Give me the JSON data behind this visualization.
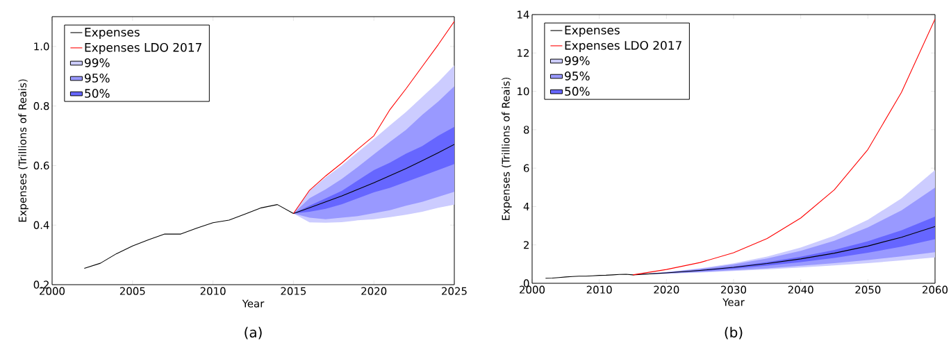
{
  "chart_data": [
    {
      "type": "line",
      "xlabel": "Year",
      "ylabel": "Expenses (Trillions of Reais)",
      "annotations": [
        "(a)"
      ],
      "legend": "top left",
      "xlim": [
        2000,
        2025
      ],
      "xticks": [
        2000,
        2005,
        2010,
        2015,
        2020,
        2025
      ],
      "ylim": [
        0.2,
        1.1
      ],
      "yticks": [
        0.2,
        0.4,
        0.6,
        0.8,
        {
          "value": 1,
          "label": "1.0"
        }
      ],
      "series": [
        {
          "name": "Expenses",
          "color": "#000000",
          "x": [
            2002,
            2003,
            2004,
            2005,
            2006,
            2007,
            2008,
            2009,
            2010,
            2011,
            2012,
            2013,
            2014,
            2015,
            2016,
            2017,
            2018,
            2019,
            2020,
            2021,
            2022,
            2023,
            2024,
            2025
          ],
          "values": [
            0.255,
            0.272,
            0.304,
            0.33,
            0.351,
            0.37,
            0.37,
            0.39,
            0.408,
            0.417,
            0.437,
            0.458,
            0.469,
            0.439,
            0.458,
            0.478,
            0.498,
            0.52,
            0.542,
            0.566,
            0.59,
            0.616,
            0.643,
            0.671
          ]
        },
        {
          "name": "Expenses LDO 2017",
          "color": "#ff0000",
          "x": [
            2015,
            2016,
            2017,
            2018,
            2019,
            2020,
            2021,
            2022,
            2023,
            2024,
            2025
          ],
          "values": [
            0.439,
            0.517,
            0.565,
            0.608,
            0.655,
            0.7,
            0.788,
            0.858,
            0.932,
            1.006,
            1.084
          ]
        },
        {
          "name": "99%",
          "type": "line",
          "color": "#ccccff",
          "x": [
            2015,
            2016,
            2017,
            2018,
            2019,
            2020,
            2021,
            2022,
            2023,
            2024,
            2025
          ],
          "values": [
            null,
            null,
            null,
            null,
            null,
            null,
            null,
            null,
            null,
            null,
            null
          ],
          "lower": [
            0.439,
            0.409,
            0.408,
            0.41,
            0.416,
            0.42,
            0.427,
            0.435,
            0.445,
            0.458,
            0.469
          ],
          "upper": [
            0.439,
            0.515,
            0.56,
            0.6,
            0.645,
            0.689,
            0.735,
            0.78,
            0.83,
            0.88,
            0.937
          ]
        },
        {
          "name": "95%",
          "type": "line",
          "color": "#9999ff",
          "x": [
            2015,
            2016,
            2017,
            2018,
            2019,
            2020,
            2021,
            2022,
            2023,
            2024,
            2025
          ],
          "values": [
            null,
            null,
            null,
            null,
            null,
            null,
            null,
            null,
            null,
            null,
            null
          ],
          "lower": [
            0.439,
            0.425,
            0.42,
            0.425,
            0.43,
            0.44,
            0.45,
            0.465,
            0.478,
            0.495,
            0.512
          ],
          "upper": [
            0.439,
            0.49,
            0.52,
            0.555,
            0.595,
            0.638,
            0.68,
            0.72,
            0.77,
            0.815,
            0.866
          ]
        },
        {
          "name": "50%",
          "type": "line",
          "color": "#6666ff",
          "x": [
            2015,
            2016,
            2017,
            2018,
            2019,
            2020,
            2021,
            2022,
            2023,
            2024,
            2025
          ],
          "values": [
            null,
            null,
            null,
            null,
            null,
            null,
            null,
            null,
            null,
            null,
            null
          ],
          "lower": [
            0.439,
            0.445,
            0.455,
            0.47,
            0.49,
            0.51,
            0.525,
            0.545,
            0.565,
            0.585,
            0.605
          ],
          "upper": [
            0.439,
            0.465,
            0.49,
            0.515,
            0.55,
            0.585,
            0.61,
            0.64,
            0.665,
            0.7,
            0.73
          ]
        }
      ]
    },
    {
      "type": "line",
      "xlabel": "Year",
      "ylabel": "Expenses (Trillions of Reais)",
      "annotations": [
        "(b)"
      ],
      "legend": "top left",
      "xlim": [
        2000,
        2060
      ],
      "xticks": [
        2000,
        2010,
        2020,
        2030,
        2040,
        2050,
        2060
      ],
      "ylim": [
        0,
        14
      ],
      "yticks": [
        0,
        2,
        4,
        6,
        8,
        10,
        12,
        14
      ],
      "series": [
        {
          "name": "Expenses",
          "color": "#000000",
          "x": [
            2002,
            2003,
            2004,
            2005,
            2006,
            2007,
            2008,
            2009,
            2010,
            2011,
            2012,
            2013,
            2014,
            2015,
            2020,
            2025,
            2030,
            2035,
            2040,
            2045,
            2050,
            2055,
            2060
          ],
          "values": [
            0.26,
            0.27,
            0.3,
            0.33,
            0.35,
            0.37,
            0.37,
            0.39,
            0.41,
            0.42,
            0.44,
            0.46,
            0.47,
            0.44,
            0.54,
            0.67,
            0.83,
            1.03,
            1.27,
            1.57,
            1.94,
            2.4,
            2.96
          ]
        },
        {
          "name": "Expenses LDO 2017",
          "color": "#ff0000",
          "x": [
            2015,
            2020,
            2025,
            2030,
            2035,
            2040,
            2045,
            2050,
            2055,
            2060
          ],
          "values": [
            0.44,
            0.72,
            1.08,
            1.59,
            2.33,
            3.4,
            4.87,
            6.97,
            9.95,
            13.77
          ]
        },
        {
          "name": "99%",
          "type": "line",
          "color": "#ccccff",
          "x": [
            2015,
            2020,
            2025,
            2030,
            2035,
            2040,
            2045,
            2050,
            2055,
            2060
          ],
          "values": [
            null,
            null,
            null,
            null,
            null,
            null,
            null,
            null,
            null,
            null
          ],
          "lower": [
            0.44,
            0.5,
            0.56,
            0.64,
            0.72,
            0.82,
            0.93,
            1.05,
            1.19,
            1.35
          ],
          "upper": [
            0.44,
            0.59,
            0.78,
            1.04,
            1.39,
            1.86,
            2.48,
            3.31,
            4.42,
            5.9
          ]
        },
        {
          "name": "95%",
          "type": "line",
          "color": "#9999ff",
          "x": [
            2015,
            2020,
            2025,
            2030,
            2035,
            2040,
            2045,
            2050,
            2055,
            2060
          ],
          "values": [
            null,
            null,
            null,
            null,
            null,
            null,
            null,
            null,
            null,
            null
          ],
          "lower": [
            0.44,
            0.51,
            0.59,
            0.68,
            0.78,
            0.91,
            1.05,
            1.21,
            1.4,
            1.62
          ],
          "upper": [
            0.44,
            0.58,
            0.75,
            0.99,
            1.29,
            1.69,
            2.22,
            2.91,
            3.8,
            4.98
          ]
        },
        {
          "name": "50%",
          "type": "line",
          "color": "#6666ff",
          "x": [
            2015,
            2020,
            2025,
            2030,
            2035,
            2040,
            2045,
            2050,
            2055,
            2060
          ],
          "values": [
            null,
            null,
            null,
            null,
            null,
            null,
            null,
            null,
            null,
            null
          ],
          "lower": [
            0.44,
            0.53,
            0.63,
            0.76,
            0.92,
            1.1,
            1.32,
            1.59,
            1.91,
            2.3
          ],
          "upper": [
            0.44,
            0.55,
            0.7,
            0.87,
            1.1,
            1.38,
            1.74,
            2.19,
            2.76,
            3.47
          ]
        }
      ]
    }
  ]
}
